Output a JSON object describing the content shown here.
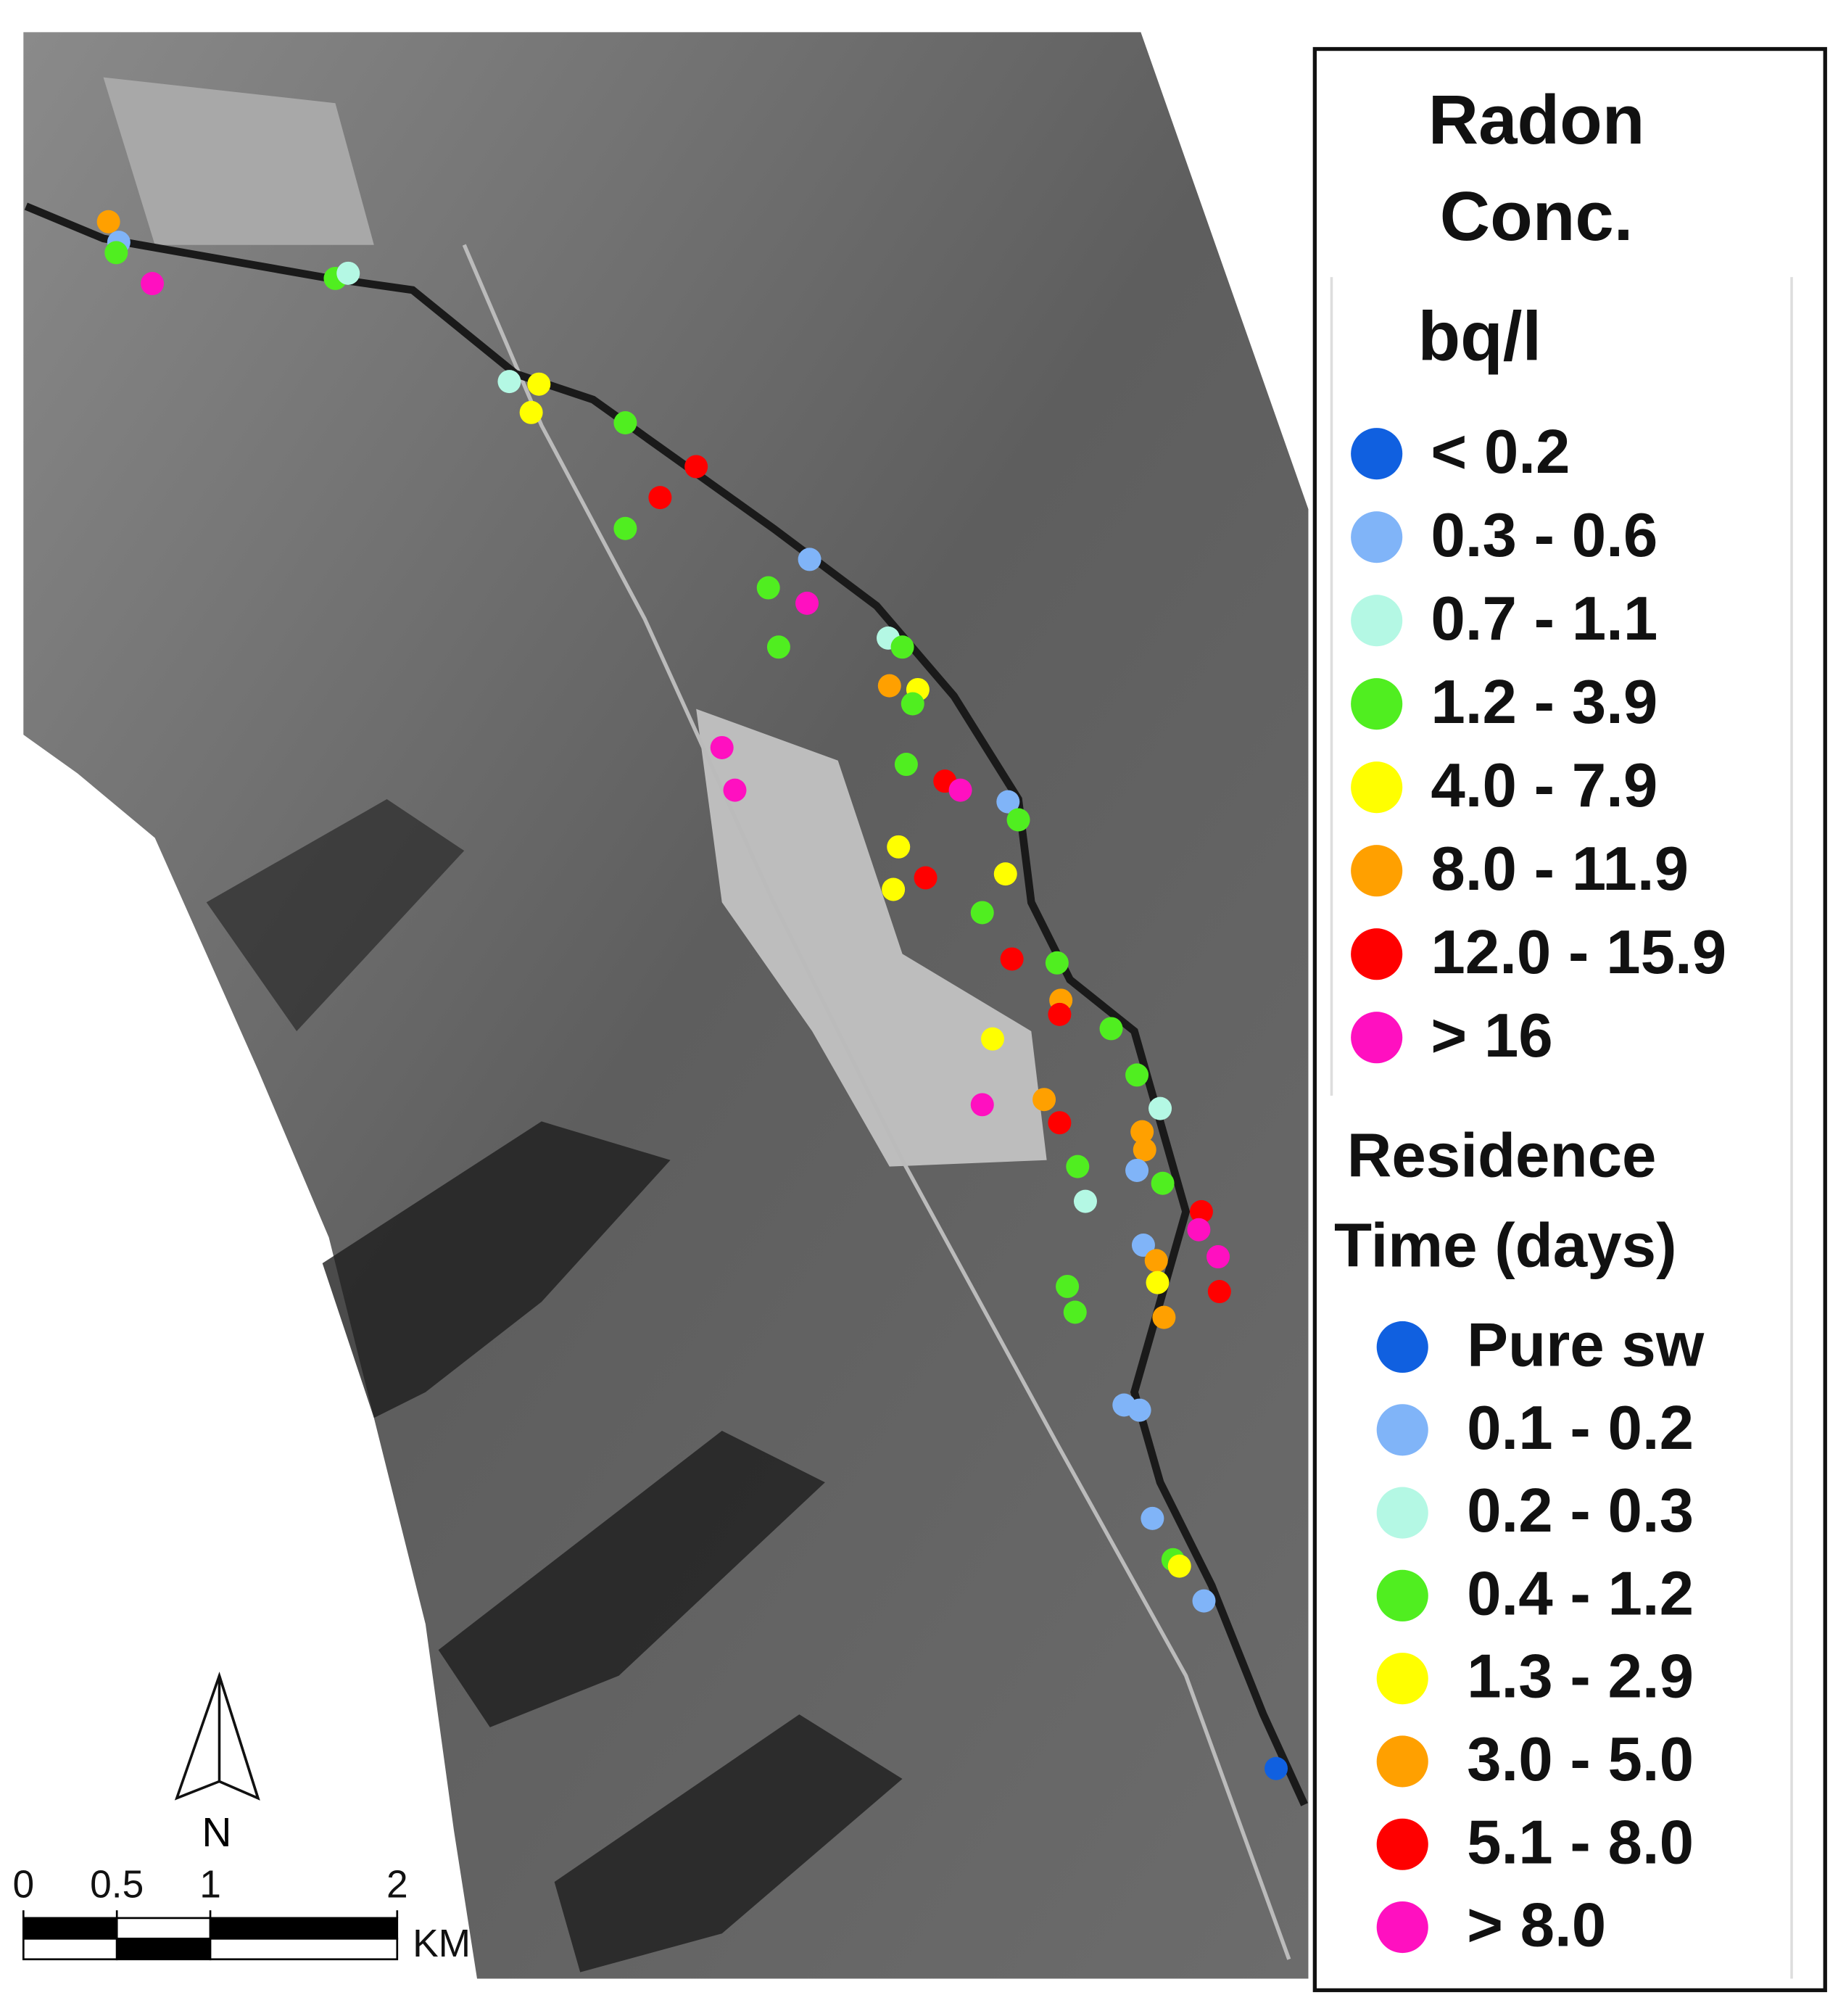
{
  "radon_legend": {
    "title_lines": [
      "Radon",
      "Conc."
    ],
    "units": "bq/l",
    "items": [
      {
        "label": "< 0.2",
        "color": "#1060e0"
      },
      {
        "label": "0.3 - 0.6",
        "color": "#80b4f8"
      },
      {
        "label": "0.7 - 1.1",
        "color": "#b4f8e4"
      },
      {
        "label": "1.2 - 3.9",
        "color": "#50ee20"
      },
      {
        "label": "4.0 - 7.9",
        "color": "#ffff00"
      },
      {
        "label": "8.0 - 11.9",
        "color": "#ffa000"
      },
      {
        "label": "12.0 - 15.9",
        "color": "#ff0000"
      },
      {
        "label": "> 16",
        "color": "#ff10c0"
      }
    ]
  },
  "residence_legend": {
    "title_lines": [
      "Residence",
      "Time (days)"
    ],
    "items": [
      {
        "label": "Pure sw",
        "color": "#1060e0"
      },
      {
        "label": "0.1 - 0.2",
        "color": "#80b4f8"
      },
      {
        "label": "0.2 - 0.3",
        "color": "#b4f8e4"
      },
      {
        "label": "0.4 - 1.2",
        "color": "#50ee20"
      },
      {
        "label": "1.3 - 2.9",
        "color": "#ffff00"
      },
      {
        "label": "3.0 - 5.0",
        "color": "#ffa000"
      },
      {
        "label": "5.1 - 8.0",
        "color": "#ff0000"
      },
      {
        "label": "> 8.0",
        "color": "#ff10c0"
      }
    ]
  },
  "scale_bar": {
    "ticks": [
      0,
      0.5,
      1,
      2
    ],
    "unit": "KM"
  },
  "north_label": "N"
}
